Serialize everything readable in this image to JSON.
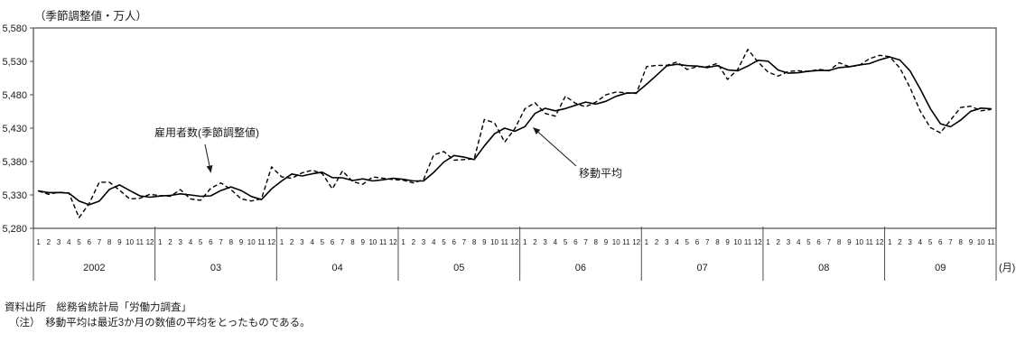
{
  "page": {
    "title": "（季節調整値・万人）",
    "month_unit_label": "(月)",
    "source_note": "資料出所　総務省統計局「労働力調査」",
    "method_note": "（注）　移動平均は最近3か月の数値の平均をとったものである。"
  },
  "annotations": {
    "employees_label": "雇用者数(季節調整値)",
    "moving_average_label": "移動平均"
  },
  "colors": {
    "line": "#000000",
    "frame": "#4d4d4d",
    "text": "#1a1a1a"
  },
  "chart_data": {
    "type": "line",
    "title": "（季節調整値・万人）",
    "xlabel": "月",
    "ylabel": "雇用者数（季節調整値・万人）",
    "ylim": [
      5280,
      5580
    ],
    "ytick_interval": 50,
    "yticks": [
      5280,
      5330,
      5380,
      5430,
      5480,
      5530,
      5580
    ],
    "ytick_labels": [
      "5,280",
      "5,330",
      "5,380",
      "5,430",
      "5,480",
      "5,530",
      "5,580"
    ],
    "grid": false,
    "legend_position": "inline-annotations",
    "years": [
      {
        "label": "2002",
        "months": 12
      },
      {
        "label": "03",
        "months": 12
      },
      {
        "label": "04",
        "months": 12
      },
      {
        "label": "05",
        "months": 12
      },
      {
        "label": "06",
        "months": 12
      },
      {
        "label": "07",
        "months": 12
      },
      {
        "label": "08",
        "months": 12
      },
      {
        "label": "09",
        "months": 11
      }
    ],
    "series": [
      {
        "name": "雇用者数(季節調整値)",
        "line_style": "dashed",
        "color": "#000000",
        "values": [
          5336,
          5331,
          5334,
          5333,
          5296,
          5317,
          5349,
          5349,
          5337,
          5324,
          5325,
          5331,
          5329,
          5328,
          5338,
          5324,
          5322,
          5340,
          5348,
          5338,
          5324,
          5321,
          5324,
          5372,
          5357,
          5355,
          5363,
          5367,
          5362,
          5339,
          5366,
          5350,
          5346,
          5357,
          5355,
          5353,
          5352,
          5348,
          5353,
          5390,
          5395,
          5382,
          5383,
          5384,
          5443,
          5438,
          5409,
          5429,
          5459,
          5468,
          5452,
          5448,
          5478,
          5467,
          5462,
          5469,
          5480,
          5484,
          5483,
          5482,
          5522,
          5524,
          5524,
          5529,
          5518,
          5522,
          5522,
          5527,
          5503,
          5518,
          5548,
          5529,
          5514,
          5508,
          5515,
          5516,
          5515,
          5518,
          5516,
          5528,
          5522,
          5524,
          5534,
          5539,
          5537,
          5520,
          5491,
          5456,
          5431,
          5423,
          5442,
          5461,
          5463,
          5456,
          5458
        ]
      },
      {
        "name": "移動平均",
        "line_style": "solid",
        "color": "#000000",
        "derived_from": "雇用者数(季節調整値)",
        "definition": "最近3か月の数値の平均（3か月移動平均）",
        "window": 3
      }
    ]
  }
}
